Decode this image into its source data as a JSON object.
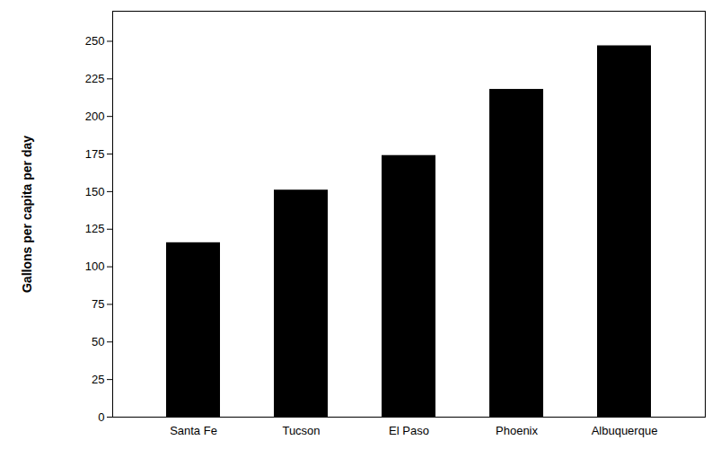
{
  "chart_data": {
    "type": "bar",
    "y_label": "Gallons per capita per day",
    "categories": [
      "Santa Fe",
      "Tucson",
      "El Paso",
      "Phoenix",
      "Albuquerque"
    ],
    "values": [
      116,
      151,
      174,
      218,
      247
    ],
    "color": "#000000",
    "ylim": [
      0,
      270
    ],
    "yticks": [
      0,
      25,
      50,
      75,
      100,
      125,
      150,
      175,
      200,
      225,
      250
    ],
    "grid": false
  }
}
